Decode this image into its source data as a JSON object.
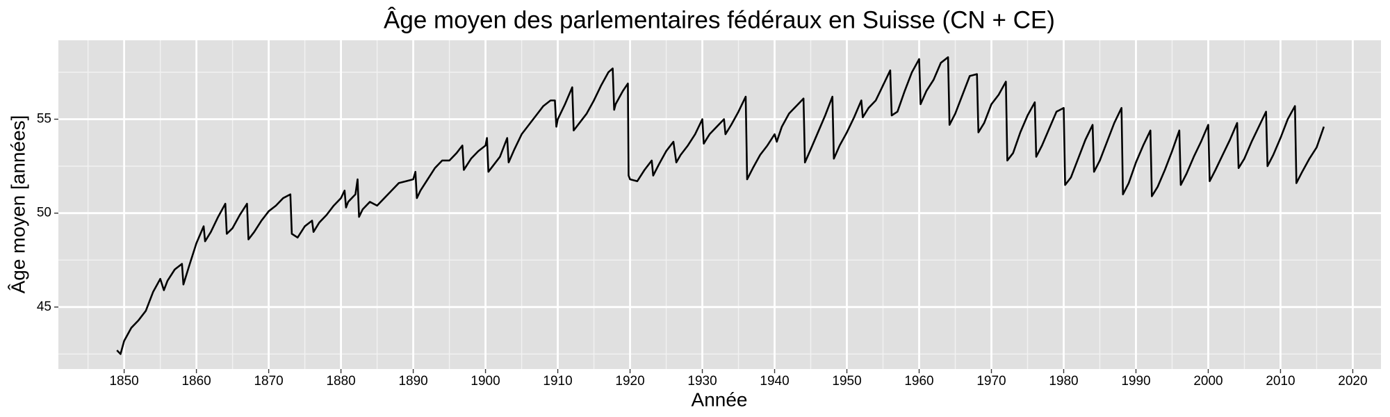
{
  "chart_data": {
    "type": "line",
    "title": "Âge moyen des parlementaires fédéraux en Suisse (CN + CE)",
    "x_label": "Année",
    "y_label": "Âge moyen [années]",
    "color": "#000000",
    "grid": true,
    "xlim": [
      1840.9,
      2023.9
    ],
    "ylim": [
      41.7,
      59.2
    ],
    "xticks": [
      1850,
      1860,
      1870,
      1880,
      1890,
      1900,
      1910,
      1920,
      1930,
      1940,
      1950,
      1960,
      1970,
      1980,
      1990,
      2000,
      2010,
      2020
    ],
    "xminorticks": [
      1845,
      1855,
      1865,
      1875,
      1885,
      1895,
      1905,
      1915,
      1925,
      1935,
      1945,
      1955,
      1965,
      1975,
      1985,
      1995,
      2005,
      2015
    ],
    "yticks": [
      45,
      50,
      55
    ],
    "yminorticks": [
      42.5,
      47.5,
      52.5,
      57.5
    ],
    "x": [
      1849,
      1849.5,
      1850,
      1851,
      1852,
      1853,
      1854,
      1855,
      1855.5,
      1856,
      1857,
      1858,
      1858.2,
      1859,
      1860,
      1861,
      1861.2,
      1862,
      1863,
      1864,
      1864.2,
      1865,
      1866,
      1867,
      1867.2,
      1868,
      1869,
      1870,
      1871,
      1872,
      1873,
      1873.2,
      1874,
      1875,
      1876,
      1876.2,
      1877,
      1878,
      1879,
      1880,
      1880.5,
      1880.7,
      1881,
      1882,
      1882.3,
      1882.5,
      1883,
      1884,
      1885,
      1886,
      1887,
      1888,
      1889,
      1890,
      1890.3,
      1890.5,
      1891,
      1892,
      1893,
      1894,
      1895,
      1896,
      1896.8,
      1897,
      1898,
      1899,
      1900,
      1900.2,
      1900.4,
      1901,
      1902,
      1903,
      1903.2,
      1904,
      1905,
      1906,
      1907,
      1908,
      1909,
      1909.6,
      1909.8,
      1910,
      1911,
      1912,
      1912.2,
      1913,
      1914,
      1915,
      1916,
      1917,
      1917.6,
      1917.8,
      1918,
      1919,
      1919.7,
      1919.8,
      1920,
      1921,
      1922,
      1923,
      1923.2,
      1924,
      1925,
      1926,
      1926.4,
      1927,
      1928,
      1929,
      1930,
      1930.2,
      1931,
      1932,
      1933,
      1933.2,
      1934,
      1935,
      1936,
      1936.2,
      1937,
      1938,
      1939,
      1940,
      1940.3,
      1941,
      1942,
      1943,
      1944,
      1944.2,
      1945,
      1946,
      1947,
      1948,
      1948.2,
      1949,
      1950,
      1951,
      1952,
      1952.2,
      1953,
      1954,
      1955,
      1956,
      1956.2,
      1957,
      1958,
      1959,
      1960,
      1960.2,
      1961,
      1962,
      1963,
      1964,
      1964.2,
      1965,
      1966,
      1967,
      1968,
      1968.2,
      1969,
      1970,
      1971,
      1972,
      1972.2,
      1973,
      1974,
      1975,
      1976,
      1976.2,
      1977,
      1978,
      1979,
      1980,
      1980.2,
      1981,
      1982,
      1983,
      1984,
      1984.2,
      1985,
      1986,
      1987,
      1988,
      1988.2,
      1989,
      1990,
      1991,
      1992,
      1992.2,
      1993,
      1994,
      1995,
      1996,
      1996.2,
      1997,
      1998,
      1999,
      2000,
      2000.2,
      2001,
      2002,
      2003,
      2004,
      2004.2,
      2005,
      2006,
      2007,
      2008,
      2008.2,
      2009,
      2010,
      2011,
      2012,
      2012.2,
      2013,
      2014,
      2015,
      2016
    ],
    "values": [
      42.7,
      42.5,
      43.2,
      43.9,
      44.3,
      44.8,
      45.8,
      46.5,
      45.9,
      46.4,
      47.0,
      47.3,
      46.2,
      47.2,
      48.4,
      49.3,
      48.5,
      49.0,
      49.8,
      50.5,
      48.9,
      49.2,
      49.9,
      50.5,
      48.6,
      49.0,
      49.6,
      50.1,
      50.4,
      50.8,
      51.0,
      48.9,
      48.7,
      49.3,
      49.6,
      49.0,
      49.5,
      49.9,
      50.4,
      50.8,
      51.2,
      50.3,
      50.6,
      51.0,
      51.8,
      49.8,
      50.2,
      50.6,
      50.4,
      50.8,
      51.2,
      51.6,
      51.7,
      51.8,
      52.2,
      50.8,
      51.2,
      51.8,
      52.4,
      52.8,
      52.8,
      53.2,
      53.6,
      52.3,
      52.9,
      53.3,
      53.6,
      54.0,
      52.2,
      52.5,
      53.0,
      54.0,
      52.7,
      53.4,
      54.2,
      54.7,
      55.2,
      55.7,
      56.0,
      56.0,
      54.6,
      55.0,
      55.8,
      56.7,
      54.4,
      54.8,
      55.3,
      56.0,
      56.8,
      57.5,
      57.7,
      55.5,
      55.8,
      56.5,
      56.9,
      52.0,
      51.8,
      51.7,
      52.3,
      52.8,
      52.0,
      52.6,
      53.3,
      53.8,
      52.7,
      53.1,
      53.6,
      54.2,
      55.0,
      53.7,
      54.2,
      54.6,
      55.0,
      54.2,
      54.7,
      55.4,
      56.2,
      51.8,
      52.4,
      53.1,
      53.6,
      54.2,
      53.8,
      54.6,
      55.3,
      55.7,
      56.1,
      52.7,
      53.4,
      54.3,
      55.2,
      56.2,
      52.9,
      53.6,
      54.3,
      55.1,
      56.0,
      55.1,
      55.6,
      56.0,
      56.8,
      57.6,
      55.2,
      55.4,
      56.5,
      57.5,
      58.2,
      55.8,
      56.5,
      57.1,
      58.0,
      58.3,
      54.7,
      55.3,
      56.3,
      57.3,
      57.4,
      54.3,
      54.8,
      55.8,
      56.3,
      57.0,
      52.8,
      53.2,
      54.3,
      55.2,
      55.9,
      53.0,
      53.6,
      54.5,
      55.4,
      55.6,
      51.5,
      51.9,
      52.9,
      53.9,
      54.7,
      52.2,
      52.8,
      53.8,
      54.8,
      55.6,
      51.0,
      51.6,
      52.7,
      53.6,
      54.4,
      50.9,
      51.4,
      52.3,
      53.3,
      54.4,
      51.5,
      52.1,
      53.0,
      53.8,
      54.7,
      51.7,
      52.3,
      53.1,
      53.9,
      54.8,
      52.4,
      52.9,
      53.8,
      54.6,
      55.4,
      52.5,
      53.1,
      54.0,
      55.0,
      55.7,
      51.6,
      52.2,
      52.9,
      53.5,
      54.6
    ]
  }
}
